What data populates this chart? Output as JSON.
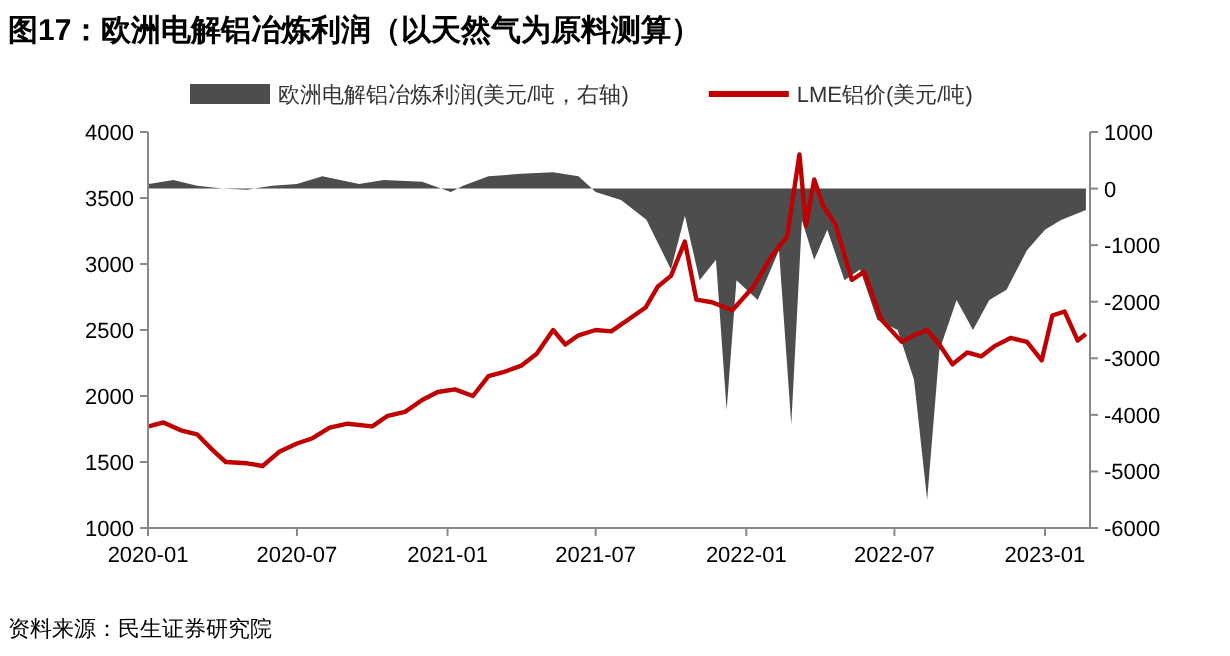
{
  "chart_data": {
    "type": "line",
    "title": "图17：欧洲电解铝冶炼利润（以天然气为原料测算）",
    "annotations": [
      "资料来源：民生证券研究院"
    ],
    "xlim": [
      "2020-01-01",
      "2023-02-25"
    ],
    "xticks": [
      "2020-01",
      "2020-07",
      "2021-01",
      "2021-07",
      "2022-01",
      "2022-07",
      "2023-01"
    ],
    "ylim": [
      1000,
      4000
    ],
    "yticks": [
      1000,
      1500,
      2000,
      2500,
      3000,
      3500,
      4000
    ],
    "y2lim": [
      -6000,
      1000
    ],
    "y2ticks": [
      -6000,
      -5000,
      -4000,
      -3000,
      -2000,
      -1000,
      0,
      1000
    ],
    "legend": "top",
    "grid": false,
    "series": [
      {
        "name": "欧洲电解铝冶炼利润(美元/吨，右轴)",
        "type": "area",
        "axis": "y2",
        "color": "#4d4d4d",
        "x": [
          "2020-01-02",
          "2020-02-01",
          "2020-03-01",
          "2020-04-01",
          "2020-05-01",
          "2020-06-01",
          "2020-07-01",
          "2020-08-01",
          "2020-09-15",
          "2020-10-15",
          "2020-12-01",
          "2021-01-05",
          "2021-01-20",
          "2021-02-20",
          "2021-04-01",
          "2021-05-10",
          "2021-06-10",
          "2021-07-01",
          "2021-08-01",
          "2021-09-01",
          "2021-10-01",
          "2021-10-18",
          "2021-11-05",
          "2021-11-25",
          "2021-12-08",
          "2021-12-20",
          "2022-01-15",
          "2022-02-10",
          "2022-02-25",
          "2022-03-10",
          "2022-03-25",
          "2022-04-10",
          "2022-05-01",
          "2022-05-20",
          "2022-06-10",
          "2022-07-05",
          "2022-07-25",
          "2022-08-10",
          "2022-08-25",
          "2022-09-15",
          "2022-10-05",
          "2022-10-25",
          "2022-11-15",
          "2022-12-10",
          "2023-01-01",
          "2023-01-20",
          "2023-02-20"
        ],
        "values": [
          80,
          150,
          50,
          0,
          -20,
          50,
          80,
          220,
          80,
          150,
          120,
          -60,
          50,
          220,
          260,
          290,
          220,
          -60,
          -200,
          -550,
          -1430,
          -480,
          -1620,
          -1260,
          -3920,
          -1620,
          -1970,
          -1090,
          -4170,
          -560,
          -1260,
          -730,
          -1620,
          -1430,
          -2320,
          -2500,
          -3380,
          -5500,
          -2860,
          -1970,
          -2500,
          -1970,
          -1790,
          -1090,
          -730,
          -560,
          -380
        ]
      },
      {
        "name": "LME铝价(美元/吨)",
        "color": "#c00000",
        "x": [
          "2020-01-02",
          "2020-01-20",
          "2020-02-10",
          "2020-03-01",
          "2020-03-20",
          "2020-04-05",
          "2020-05-01",
          "2020-05-20",
          "2020-06-10",
          "2020-07-01",
          "2020-07-20",
          "2020-08-10",
          "2020-09-01",
          "2020-10-01",
          "2020-10-20",
          "2020-11-10",
          "2020-12-01",
          "2020-12-20",
          "2021-01-10",
          "2021-02-01",
          "2021-02-20",
          "2021-03-10",
          "2021-04-01",
          "2021-04-20",
          "2021-05-10",
          "2021-05-25",
          "2021-06-10",
          "2021-07-01",
          "2021-07-20",
          "2021-08-10",
          "2021-08-31",
          "2021-09-15",
          "2021-10-01",
          "2021-10-18",
          "2021-11-01",
          "2021-11-20",
          "2021-12-15",
          "2022-01-10",
          "2022-02-01",
          "2022-02-20",
          "2022-03-07",
          "2022-03-15",
          "2022-03-25",
          "2022-04-05",
          "2022-04-20",
          "2022-05-10",
          "2022-05-25",
          "2022-06-15",
          "2022-07-10",
          "2022-07-25",
          "2022-08-10",
          "2022-08-25",
          "2022-09-10",
          "2022-09-28",
          "2022-10-15",
          "2022-11-01",
          "2022-11-20",
          "2022-12-10",
          "2022-12-28",
          "2023-01-10",
          "2023-01-25",
          "2023-02-10",
          "2023-02-20"
        ],
        "values": [
          1770,
          1800,
          1740,
          1710,
          1590,
          1500,
          1490,
          1470,
          1580,
          1640,
          1680,
          1760,
          1790,
          1770,
          1850,
          1880,
          1970,
          2030,
          2050,
          2000,
          2150,
          2180,
          2230,
          2320,
          2500,
          2390,
          2460,
          2500,
          2490,
          2580,
          2670,
          2830,
          2910,
          3170,
          2730,
          2710,
          2650,
          2830,
          3060,
          3210,
          3830,
          3290,
          3640,
          3440,
          3300,
          2880,
          2940,
          2580,
          2410,
          2460,
          2500,
          2390,
          2240,
          2330,
          2300,
          2380,
          2440,
          2410,
          2270,
          2610,
          2640,
          2420,
          2470
        ]
      }
    ]
  }
}
